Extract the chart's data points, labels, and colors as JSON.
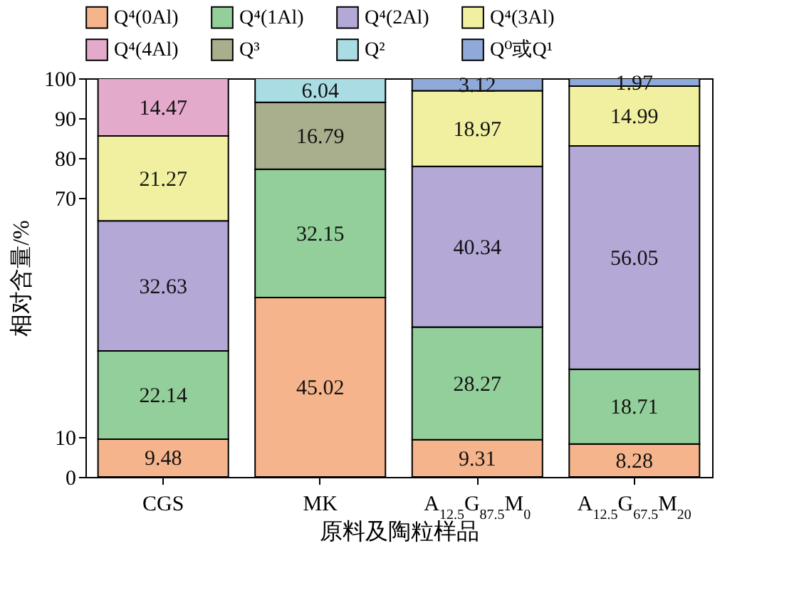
{
  "chart_data": {
    "type": "bar",
    "stacked": true,
    "ylabel": "相对含量/%",
    "xlabel": "原料及陶粒样品",
    "legend": "top",
    "categories": [
      "CGS",
      "MK",
      "A$_{12.5}$G$_{87.5}$M$_{0}$",
      "A$_{12.5}$G$_{67.5}$M$_{20}$"
    ],
    "ylim": [
      0,
      100
    ],
    "yticks": [
      0,
      10,
      70,
      80,
      90,
      100
    ],
    "series": [
      {
        "name": "Q⁴(0Al)",
        "color": "#f5b48c",
        "values": [
          9.48,
          45.02,
          9.31,
          8.28
        ],
        "value_labels": [
          "9.48",
          "45.02",
          "9.31",
          "8.28"
        ]
      },
      {
        "name": "Q⁴(1Al)",
        "color": "#93cf9a",
        "values": [
          22.14,
          32.15,
          28.27,
          18.71
        ],
        "value_labels": [
          "22.14",
          "32.15",
          "28.27",
          "18.71"
        ]
      },
      {
        "name": "Q⁴(2Al)",
        "color": "#b4a8d6",
        "values": [
          32.63,
          null,
          40.34,
          56.05
        ],
        "value_labels": [
          "32.63",
          null,
          "40.34",
          "56.05"
        ]
      },
      {
        "name": "Q⁴(3Al)",
        "color": "#f0f0a0",
        "values": [
          21.27,
          null,
          18.97,
          14.99
        ],
        "value_labels": [
          "21.27",
          null,
          "18.97",
          "14.99"
        ]
      },
      {
        "name": "Q⁴(4Al)",
        "color": "#e3aacb",
        "values": [
          14.47,
          null,
          null,
          null
        ],
        "value_labels": [
          "14.47",
          null,
          null,
          null
        ]
      },
      {
        "name": "Q³",
        "color": "#a9ae8d",
        "values": [
          null,
          16.79,
          null,
          null
        ],
        "value_labels": [
          null,
          "16.79",
          null,
          null
        ]
      },
      {
        "name": "Q²",
        "color": "#a9dde3",
        "values": [
          null,
          6.04,
          null,
          null
        ],
        "value_labels": [
          null,
          "6.04",
          null,
          null
        ]
      },
      {
        "name": "Q⁰或Q¹",
        "color": "#8fa9d8",
        "values": [
          null,
          null,
          3.12,
          1.97
        ],
        "value_labels": [
          null,
          null,
          "3.12",
          "1.97"
        ]
      }
    ]
  }
}
